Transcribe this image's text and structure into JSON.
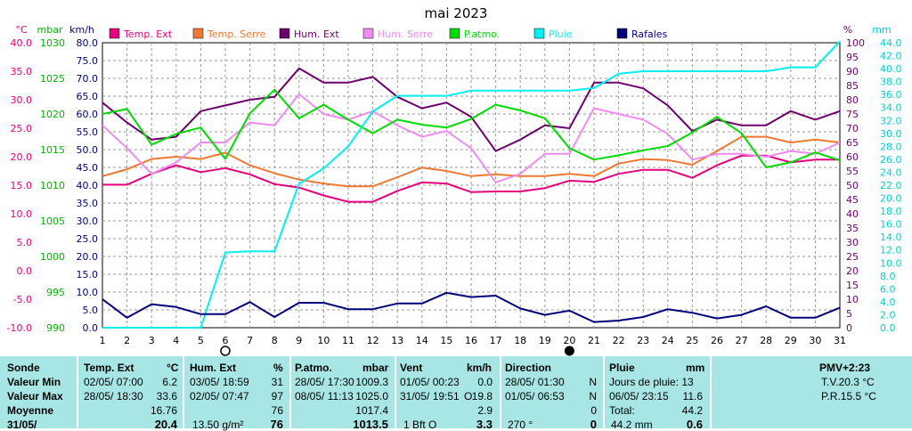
{
  "colors": {
    "temp_ext": "#e6007e",
    "temp_serre": "#f07830",
    "hum_ext": "#6e006e",
    "hum_serre": "#f08cf0",
    "patmo": "#00dc00",
    "pluie": "#00f0f0",
    "rafales": "#00007a",
    "grid": "#9a9a9a",
    "panel_bg": "#a8e6e6"
  },
  "chart_data": {
    "type": "line",
    "title": "mai 2023",
    "axes": {
      "temp": {
        "unit": "°C",
        "ticks": [
          "40.0",
          "35.0",
          "30.0",
          "25.0",
          "20.0",
          "15.0",
          "10.0",
          "5.0",
          "0.0",
          "-5.0",
          "-10.0"
        ],
        "range": [
          -10,
          40
        ]
      },
      "pressure": {
        "unit": "mbar",
        "ticks": [
          "1030",
          "1025",
          "1020",
          "1015",
          "1010",
          "1005",
          "1000",
          "995",
          "990"
        ],
        "range": [
          990,
          1030
        ]
      },
      "wind": {
        "unit": "km/h",
        "ticks": [
          "80.0",
          "75.0",
          "70.0",
          "65.0",
          "60.0",
          "55.0",
          "50.0",
          "45.0",
          "40.0",
          "35.0",
          "30.0",
          "25.0",
          "20.0",
          "15.0",
          "10.0",
          "5.0",
          "0.0"
        ],
        "range": [
          0,
          80
        ]
      },
      "humidity": {
        "unit": "%",
        "ticks": [
          "100",
          "95",
          "90",
          "85",
          "80",
          "75",
          "70",
          "65",
          "60",
          "55",
          "50",
          "45",
          "40",
          "35",
          "30",
          "25",
          "20",
          "15",
          "10",
          "5",
          "0"
        ],
        "range": [
          0,
          100
        ]
      },
      "rain": {
        "unit": "mm",
        "ticks": [
          "44.0",
          "42.0",
          "40.0",
          "38.0",
          "36.0",
          "34.0",
          "32.0",
          "30.0",
          "28.0",
          "26.0",
          "24.0",
          "22.0",
          "20.0",
          "18.0",
          "16.0",
          "14.0",
          "12.0",
          "10.0",
          "8.0",
          "6.0",
          "4.0",
          "2.0",
          "0.0"
        ],
        "range": [
          0,
          44
        ]
      }
    },
    "x": [
      1,
      2,
      3,
      4,
      5,
      6,
      7,
      8,
      9,
      10,
      11,
      12,
      13,
      14,
      15,
      16,
      17,
      18,
      19,
      20,
      21,
      22,
      23,
      24,
      25,
      26,
      27,
      28,
      29,
      30,
      31
    ],
    "series": [
      {
        "name": "Temp. Ext",
        "color_key": "temp_ext",
        "axis": "temp",
        "values": [
          15.1,
          15.1,
          17.0,
          18.5,
          17.3,
          18.0,
          16.9,
          15.2,
          14.6,
          13.2,
          12.1,
          12.1,
          14.0,
          15.5,
          15.3,
          13.8,
          13.9,
          13.9,
          14.5,
          15.8,
          15.6,
          17.0,
          17.7,
          17.7,
          16.3,
          18.5,
          20.2,
          20.2,
          19.0,
          19.5,
          19.5
        ]
      },
      {
        "name": "Temp. Serre",
        "color_key": "temp_serre",
        "axis": "temp",
        "values": [
          16.6,
          17.8,
          19.6,
          20.0,
          19.6,
          20.7,
          18.5,
          17.1,
          16.0,
          15.3,
          14.8,
          14.8,
          16.4,
          18.1,
          17.5,
          16.6,
          16.9,
          16.6,
          16.6,
          17.0,
          16.6,
          18.8,
          19.6,
          19.4,
          18.6,
          21.0,
          23.5,
          23.5,
          22.5,
          23.0,
          22.5
        ]
      },
      {
        "name": "Hum. Ext",
        "color_key": "hum_ext",
        "axis": "humidity",
        "values": [
          79,
          72,
          66,
          67,
          76,
          78,
          80,
          81,
          91,
          86,
          86,
          88,
          81,
          77,
          79,
          74,
          62,
          66,
          71,
          70,
          86,
          86,
          84,
          78,
          69,
          73,
          71,
          71,
          76,
          73,
          76
        ]
      },
      {
        "name": "Hum. Serre",
        "color_key": "hum_serre",
        "axis": "humidity",
        "values": [
          71,
          63,
          54,
          58,
          65,
          65,
          72,
          71,
          82,
          75,
          73,
          76,
          71,
          67,
          69,
          63,
          51,
          54,
          61,
          61,
          77,
          75,
          73,
          68,
          59,
          61,
          61,
          60,
          62,
          61,
          65
        ]
      },
      {
        "name": "P.atmo.",
        "color_key": "patmo",
        "axis": "pressure",
        "values": [
          1020.0,
          1020.7,
          1015.7,
          1017.2,
          1018.1,
          1013.7,
          1020.1,
          1023.4,
          1019.4,
          1021.3,
          1019.2,
          1017.3,
          1019.2,
          1018.5,
          1018.1,
          1019.3,
          1021.3,
          1020.5,
          1019.4,
          1015.2,
          1013.6,
          1014.2,
          1014.9,
          1015.5,
          1017.4,
          1019.6,
          1017.3,
          1012.5,
          1013.2,
          1014.6,
          1013.5
        ]
      },
      {
        "name": "Pluie",
        "color_key": "pluie",
        "axis": "rain",
        "values": [
          0,
          0,
          0,
          0,
          0,
          11.6,
          11.8,
          11.8,
          22.2,
          24.6,
          28.0,
          33.4,
          35.8,
          35.8,
          35.8,
          36.6,
          36.6,
          36.6,
          36.6,
          36.6,
          37.0,
          39.2,
          39.6,
          39.6,
          39.6,
          39.6,
          39.6,
          39.6,
          40.2,
          40.2,
          44.2
        ]
      },
      {
        "name": "Rafales",
        "color_key": "rafales",
        "axis": "wind",
        "values": [
          8.0,
          2.8,
          6.6,
          5.8,
          3.8,
          3.8,
          7.2,
          3.0,
          7.0,
          7.0,
          5.2,
          5.2,
          6.8,
          6.8,
          9.8,
          8.6,
          9.0,
          5.4,
          3.6,
          4.8,
          1.6,
          2.0,
          3.0,
          5.2,
          4.2,
          2.6,
          3.6,
          6.0,
          2.8,
          2.8,
          5.6
        ]
      }
    ],
    "markers": {
      "full_moon_day": 20,
      "new_moon_day": 6
    }
  },
  "summary": {
    "sonde": {
      "header": "Sonde",
      "rows": [
        "Valeur Min",
        "Valeur Max",
        "Moyenne",
        "31/05/"
      ]
    },
    "temp": {
      "header": "Temp. Ext",
      "unit": "°C",
      "min_date": "02/05/ 07:00",
      "min_val": "6.2",
      "max_date": "28/05/ 18:30",
      "max_val": "33.6",
      "mean": "16.76",
      "last": "20.4"
    },
    "hum": {
      "header": "Hum. Ext",
      "unit": "%",
      "min_date": "03/05/ 18:59",
      "min_val": "31",
      "max_date": "02/05/ 07:47",
      "max_val": "97",
      "mean": "76",
      "last_extra": "13.50 g/m²",
      "last": "76"
    },
    "patm": {
      "header": "P.atmo.",
      "unit": "mbar",
      "min_date": "28/05/ 17:30",
      "min_val": "1009.3",
      "max_date": "08/05/ 11:13",
      "max_val": "1025.0",
      "mean": "1017.4",
      "last": "1013.5"
    },
    "vent": {
      "header": "Vent",
      "unit": "km/h",
      "min_date": "01/05/ 00:23",
      "min_val": "0.0",
      "max_date": "31/05/ 19:51",
      "max_dir": "O",
      "max_val": "19.8",
      "mean": "2.9",
      "last_extra": "1 Bft O",
      "last": "3.3"
    },
    "direction": {
      "header": "Direction",
      "min_date": "28/05/ 01:30",
      "min_val": "N",
      "max_date": "01/05/ 06:53",
      "max_val": "N",
      "mean": "0",
      "last_extra": "270 °",
      "last": "0"
    },
    "pluie": {
      "header": "Pluie",
      "unit": "mm",
      "days_label": "Jours de pluie: 13",
      "max_date": "06/05/ 23:15",
      "max_val": "11.6",
      "total_label": "Total:",
      "total_val": "44.2",
      "last_extra": "44.2 mm",
      "last": "0.6"
    },
    "pmv": {
      "header": "PMV+2:23",
      "tv": "T.V.20.3 °C",
      "pr": "P.R.15.5 °C"
    }
  }
}
